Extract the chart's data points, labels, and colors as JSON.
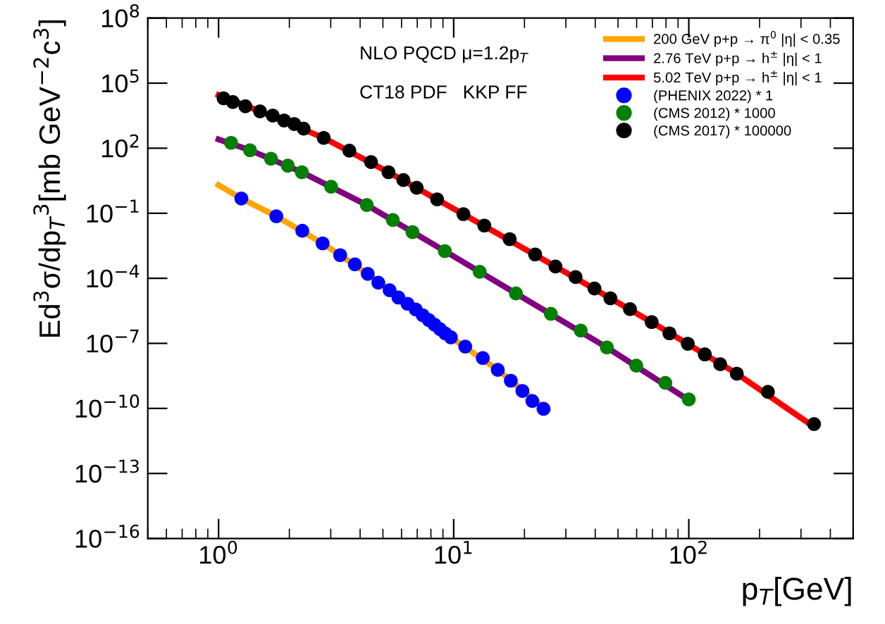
{
  "chart_data": {
    "type": "line",
    "xlabel": "p$_{T}$[GeV]",
    "ylabel": "Ed$^{3}$σ/dp$_{T}$$^{3}$[mb GeV$^{−2}$c$^{3}$]",
    "annotations": [
      "NLO PQCD μ=1.2p$_{T}$",
      "CT18 PDF   KKP FF"
    ],
    "log": "xy",
    "grid": false,
    "legend": "top right",
    "xlim": [
      0.5,
      500
    ],
    "xticks": [
      {
        "value": 1,
        "label": "10$^{0}$"
      },
      {
        "value": 10,
        "label": "10$^{1}$"
      },
      {
        "value": 100,
        "label": "10$^{2}$"
      }
    ],
    "ylim": [
      1e-16,
      100000000.0
    ],
    "yticks": [
      {
        "value": 1e-16,
        "label": "10$^{−16}$"
      },
      {
        "value": 1e-13,
        "label": "10$^{−13}$"
      },
      {
        "value": 1e-10,
        "label": "10$^{−10}$"
      },
      {
        "value": 1e-07,
        "label": "10$^{−7}$"
      },
      {
        "value": 0.0001,
        "label": "10$^{−4}$"
      },
      {
        "value": 0.1,
        "label": "10$^{−1}$"
      },
      {
        "value": 100,
        "label": "10$^{2}$"
      },
      {
        "value": 100000,
        "label": "10$^{5}$"
      },
      {
        "value": 100000000,
        "label": "10$^{8}$"
      }
    ],
    "series": [
      {
        "name": "200 GeV p+p → π$^{0}$ |η| < 0.35",
        "color": "#ffa500",
        "x": [
          1.0,
          1.25,
          1.76,
          2.77,
          4.31,
          6.89,
          9.73,
          15.4,
          25
        ],
        "values": [
          2.0,
          0.48,
          0.073,
          0.0041,
          0.00016,
          3.7e-06,
          1.9e-07,
          6e-09,
          8e-11
        ]
      },
      {
        "name": "2.76 TeV p+p → h$^{±}$ |η| < 1",
        "color": "#800080",
        "x": [
          1.0,
          1.36,
          2.26,
          4.27,
          9.17,
          18.4,
          44.8,
          100
        ],
        "values": [
          255,
          81,
          7.8,
          0.24,
          0.0018,
          2e-05,
          6.5e-08,
          2.4e-10
        ]
      },
      {
        "name": "5.02 TeV p+p → h$^{±}$ |η| < 1",
        "color": "#ff0000",
        "x": [
          1.0,
          1.5,
          2.8,
          5.28,
          11,
          27.1,
          69.5,
          160,
          341
        ],
        "values": [
          28500,
          5000,
          300,
          7.8,
          0.091,
          0.00035,
          9.6e-07,
          4e-09,
          1.4e-11
        ]
      },
      {
        "type": "scatter",
        "marker": "circle",
        "name": "(PHENIX 2022) * 1",
        "color": "#0000ff",
        "x": [
          1.25,
          1.76,
          2.27,
          2.77,
          3.29,
          3.8,
          4.31,
          4.78,
          5.34,
          5.82,
          6.36,
          6.89,
          7.38,
          7.83,
          8.28,
          8.75,
          9.2,
          9.73,
          11.2,
          13.3,
          15.4,
          17.5,
          19.6,
          21.6,
          24.1
        ],
        "values": [
          0.48,
          0.073,
          0.0156,
          0.0041,
          0.00117,
          0.00044,
          0.00016,
          6.3e-05,
          2.8e-05,
          1.3e-05,
          6.7e-06,
          3.7e-06,
          2e-06,
          1.2e-06,
          7.4e-07,
          4.5e-07,
          2.9e-07,
          1.9e-07,
          7.1e-08,
          2.1e-08,
          6e-09,
          1.9e-09,
          6.4e-10,
          2.2e-10,
          9.6e-11
        ]
      },
      {
        "type": "scatter",
        "marker": "circle",
        "name": "(CMS 2012) * 1000",
        "color": "#008000",
        "x": [
          1.13,
          1.36,
          1.67,
          1.97,
          2.26,
          3.01,
          4.27,
          5.51,
          6.68,
          9.17,
          12.9,
          18.4,
          25.9,
          34.7,
          44.8,
          59.8,
          79.5,
          100
        ],
        "values": [
          178,
          81,
          33,
          15.7,
          7.8,
          1.67,
          0.24,
          0.049,
          0.0135,
          0.0018,
          0.0002,
          2e-05,
          2.3e-06,
          3.9e-07,
          6.5e-08,
          9.4e-09,
          1.5e-09,
          2.6e-10
        ]
      },
      {
        "type": "scatter",
        "marker": "circle",
        "name": "(CMS 2017) * 100000",
        "color": "#000000",
        "x": [
          1.05,
          1.15,
          1.3,
          1.5,
          1.7,
          1.9,
          2.1,
          2.3,
          2.8,
          3.6,
          4.45,
          5.28,
          6.11,
          6.96,
          8.5,
          11,
          13.5,
          17.3,
          22.2,
          27.1,
          33,
          39.7,
          46.4,
          56.2,
          69.5,
          82.7,
          99,
          117,
          136,
          160,
          217,
          341
        ],
        "values": [
          20000,
          13500,
          8600,
          5000,
          3200,
          1900,
          1300,
          800,
          300,
          77,
          23,
          7.8,
          3.4,
          1.5,
          0.44,
          0.091,
          0.027,
          0.0064,
          0.00126,
          0.00035,
          0.000114,
          3.4e-05,
          1.2e-05,
          3.8e-06,
          9.6e-07,
          2.9e-07,
          9.6e-08,
          3.1e-08,
          1.09e-08,
          4e-09,
          5.8e-10,
          1.9e-11
        ]
      }
    ]
  }
}
